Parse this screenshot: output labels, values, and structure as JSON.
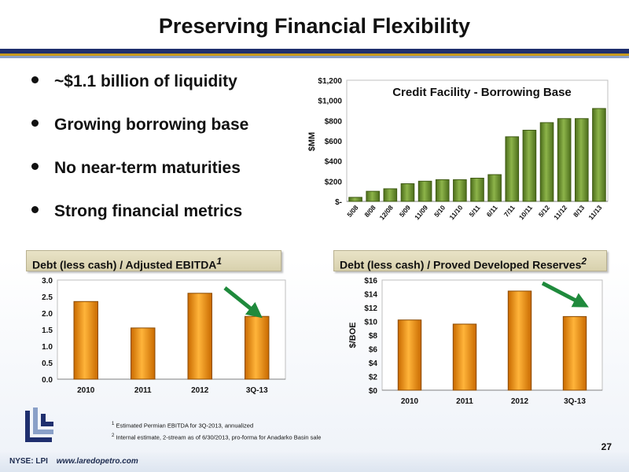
{
  "title": "Preserving Financial Flexibility",
  "bullets": [
    "~$1.1 billion of liquidity",
    "Growing borrowing base",
    "No near-term maturities",
    "Strong financial metrics"
  ],
  "colors": {
    "title_rule_navy": "#1f2f6e",
    "title_rule_gold": "#c79a1e",
    "bar_green": "#6f962c",
    "bar_orange": "#f2900f",
    "label_panel": "#ddd6b4",
    "arrow_green": "#1f8a3c"
  },
  "chart_data": [
    {
      "type": "bar",
      "title": "Credit Facility - Borrowing Base",
      "ylabel": "$MM",
      "yticks": [
        "$-",
        "$200",
        "$400",
        "$600",
        "$800",
        "$1,000",
        "$1,200"
      ],
      "ylim": [
        0,
        1200
      ],
      "categories": [
        "5/08",
        "8/08",
        "12/08",
        "5/09",
        "11/09",
        "5/10",
        "11/10",
        "5/11",
        "6/11",
        "7/11",
        "10/11",
        "5/12",
        "11/12",
        "8/13",
        "11/13"
      ],
      "values": [
        40,
        100,
        125,
        175,
        200,
        215,
        215,
        230,
        265,
        640,
        705,
        780,
        820,
        820,
        920
      ]
    },
    {
      "type": "bar",
      "title": "Debt (less cash) / Adjusted EBITDA",
      "title_sup": "1",
      "yticks": [
        "0.0",
        "0.5",
        "1.0",
        "1.5",
        "2.0",
        "2.5",
        "3.0"
      ],
      "ylim": [
        0,
        3.0
      ],
      "categories": [
        "2010",
        "2011",
        "2012",
        "3Q-13"
      ],
      "values": [
        2.35,
        1.55,
        2.6,
        1.9
      ]
    },
    {
      "type": "bar",
      "title": "Debt (less cash) / Proved Developed Reserves",
      "title_sup": "2",
      "ylabel": "$/BOE",
      "yticks": [
        "$0",
        "$2",
        "$4",
        "$6",
        "$8",
        "$10",
        "$12",
        "$14",
        "$16"
      ],
      "ylim": [
        0,
        16
      ],
      "categories": [
        "2010",
        "2011",
        "2012",
        "3Q-13"
      ],
      "values": [
        10.2,
        9.6,
        14.4,
        10.7
      ]
    }
  ],
  "footnotes": [
    {
      "sup": "1",
      "text": "Estimated Permian EBITDA for 3Q-2013, annualized"
    },
    {
      "sup": "2",
      "text": "Internal estimate, 2-stream as of 6/30/2013, pro-forma for Anadarko Basin sale"
    }
  ],
  "page_number": "27",
  "footer": {
    "ticker": "NYSE: LPI",
    "website": "www.laredopetro.com"
  }
}
